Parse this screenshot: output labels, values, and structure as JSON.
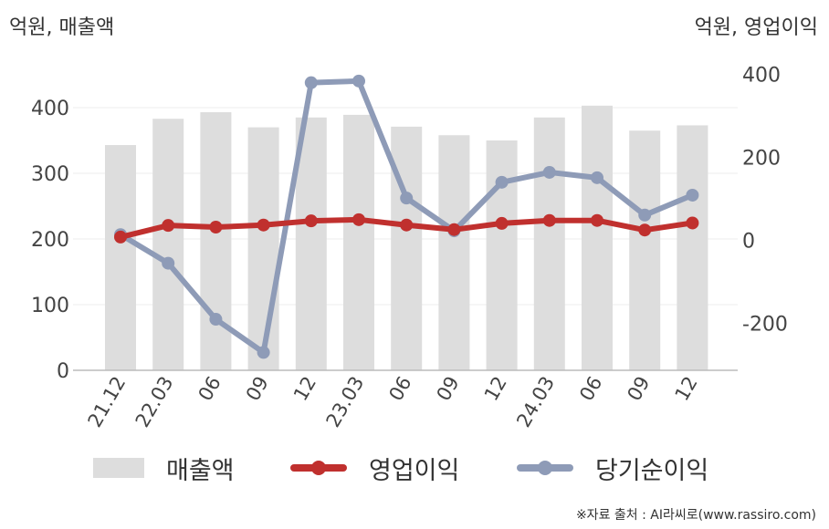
{
  "chart_data": {
    "type": "bar+line",
    "y_left_unit_label": "억원, 매출액",
    "y_right_unit_label": "억원, 영업이익",
    "categories": [
      "21.12",
      "22.03",
      "06",
      "09",
      "12",
      "23.03",
      "06",
      "09",
      "12",
      "24.03",
      "06",
      "09",
      "12"
    ],
    "y_left_ticks": [
      0,
      100,
      200,
      300,
      400
    ],
    "y_right_ticks": [
      -200,
      0,
      200,
      400
    ],
    "ylim_left": [
      0,
      450
    ],
    "ylim_right": [
      -313,
      399
    ],
    "series": [
      {
        "name": "매출액",
        "type": "bar",
        "axis": "left",
        "color": "#dddddd",
        "values": [
          343,
          383,
          393,
          370,
          385,
          389,
          371,
          358,
          350,
          385,
          403,
          365,
          373
        ]
      },
      {
        "name": "영업이익",
        "type": "line",
        "axis": "right",
        "color": "#c0302e",
        "values": [
          8,
          36,
          32,
          37,
          47,
          50,
          37,
          26,
          41,
          48,
          48,
          25,
          42
        ]
      },
      {
        "name": "당기순이익",
        "type": "line",
        "axis": "right",
        "color": "#8e9bb7",
        "values": [
          14,
          -55,
          -190,
          -270,
          380,
          384,
          102,
          23,
          140,
          164,
          151,
          61,
          109
        ]
      }
    ],
    "grid": true,
    "legend_position": "bottom"
  },
  "source": "※자료 출처 : AI라씨로(www.rassiro.com)"
}
